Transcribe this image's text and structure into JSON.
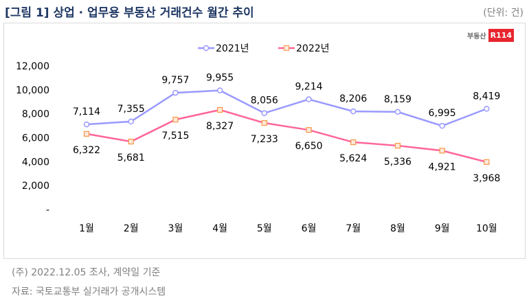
{
  "header": {
    "title": "[그림 1] 상업 · 업무용 부동산 거래건수 월간 추이",
    "unit": "(단위: 건)"
  },
  "brand": {
    "text": "부동산",
    "badge": "R114"
  },
  "footer": {
    "note": "(주) 2022.12.05  조사, 계약일  기준",
    "source": "자료: 국토교통부  실거래가  공개시스템"
  },
  "chart_data": {
    "type": "line",
    "title": "상업 · 업무용 부동산 거래건수 월간 추이",
    "categories": [
      "1월",
      "2월",
      "3월",
      "4월",
      "5월",
      "6월",
      "7월",
      "8월",
      "9월",
      "10월"
    ],
    "series": [
      {
        "name": "2021년",
        "color": "#9999ff",
        "values": [
          7114,
          7355,
          9757,
          9955,
          8056,
          9214,
          8206,
          8159,
          6995,
          8419
        ],
        "labels": [
          "7,114",
          "7,355",
          "9,757",
          "9,955",
          "8,056",
          "9,214",
          "8,206",
          "8,159",
          "6,995",
          "8,419"
        ]
      },
      {
        "name": "2022년",
        "color": "#ff6699",
        "values": [
          6322,
          5681,
          7515,
          8327,
          7233,
          6650,
          5624,
          5336,
          4921,
          3968
        ],
        "labels": [
          "6,322",
          "5,681",
          "7,515",
          "8,327",
          "7,233",
          "6,650",
          "5,624",
          "5,336",
          "4,921",
          "3,968"
        ]
      }
    ],
    "yticks": [
      0,
      2000,
      4000,
      6000,
      8000,
      10000,
      12000
    ],
    "ytick_labels": [
      "-",
      "2,000",
      "4,000",
      "6,000",
      "8,000",
      "10,000",
      "12,000"
    ],
    "ylim": [
      0,
      12000
    ],
    "grid": false,
    "legend": "top-center"
  }
}
